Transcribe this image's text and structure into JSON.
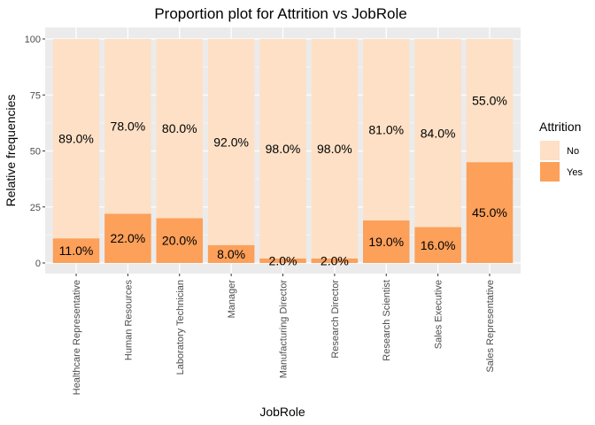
{
  "chart_data": {
    "type": "bar",
    "stacked": true,
    "title": "Proportion plot for Attrition vs JobRole",
    "xlabel": "JobRole",
    "ylabel": "Relative frequencies",
    "ylim": [
      0,
      100
    ],
    "yticks": [
      "0",
      "25",
      "50",
      "75",
      "100"
    ],
    "grid": true,
    "categories": [
      "Healthcare Representative",
      "Human Resources",
      "Laboratory Technician",
      "Manager",
      "Manufacturing Director",
      "Research Director",
      "Research Scientist",
      "Sales Executive",
      "Sales Representative"
    ],
    "series": [
      {
        "name": "Yes",
        "color": "#fca05a",
        "values": [
          11,
          22,
          20,
          8,
          2,
          2,
          19,
          16,
          45
        ],
        "labels": [
          "11.0%",
          "22.0%",
          "20.0%",
          "8.0%",
          "2.0%",
          "2.0%",
          "19.0%",
          "16.0%",
          "45.0%"
        ]
      },
      {
        "name": "No",
        "color": "#fde0c6",
        "values": [
          89,
          78,
          80,
          92,
          98,
          98,
          81,
          84,
          55
        ],
        "labels": [
          "89.0%",
          "78.0%",
          "80.0%",
          "92.0%",
          "98.0%",
          "98.0%",
          "81.0%",
          "84.0%",
          "55.0%"
        ]
      }
    ],
    "legend": {
      "title": "Attrition",
      "placement": "right",
      "items": [
        {
          "label": "No",
          "color": "#fde0c6"
        },
        {
          "label": "Yes",
          "color": "#fca05a"
        }
      ]
    }
  }
}
